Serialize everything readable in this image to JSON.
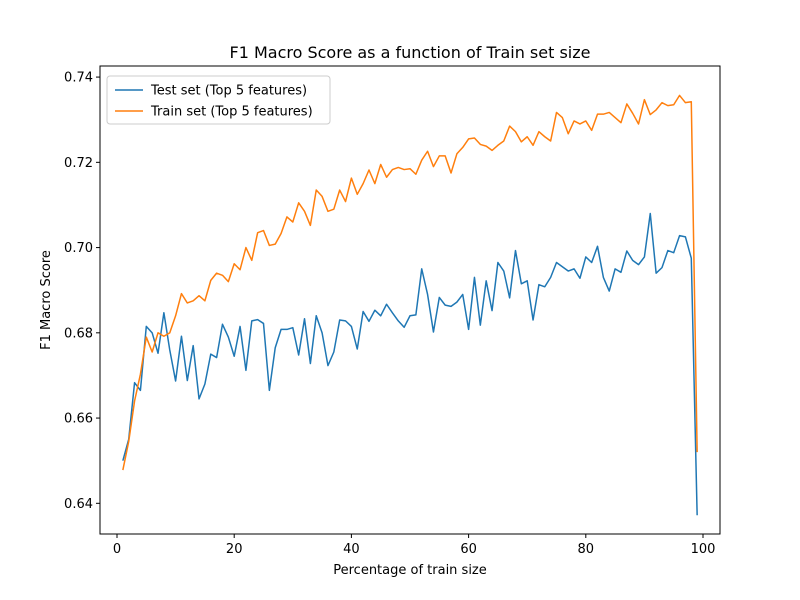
{
  "chart_data": {
    "type": "line",
    "title": "F1 Macro Score as a function of Train set size",
    "xlabel": "Percentage of train size",
    "ylabel": "F1 Macro Score",
    "xlim": [
      -2.9,
      102.9
    ],
    "ylim": [
      0.6328,
      0.7426
    ],
    "xticks": [
      0,
      20,
      40,
      60,
      80,
      100
    ],
    "xtick_labels": [
      "0",
      "20",
      "40",
      "60",
      "80",
      "100"
    ],
    "yticks": [
      0.64,
      0.66,
      0.68,
      0.7,
      0.72,
      0.74
    ],
    "ytick_labels": [
      "0.64",
      "0.66",
      "0.68",
      "0.70",
      "0.72",
      "0.74"
    ],
    "grid": false,
    "legend": "top-left",
    "x": [
      1,
      2,
      3,
      4,
      5,
      6,
      7,
      8,
      9,
      10,
      11,
      12,
      13,
      14,
      15,
      16,
      17,
      18,
      19,
      20,
      21,
      22,
      23,
      24,
      25,
      26,
      27,
      28,
      29,
      30,
      31,
      32,
      33,
      34,
      35,
      36,
      37,
      38,
      39,
      40,
      41,
      42,
      43,
      44,
      45,
      46,
      47,
      48,
      49,
      50,
      51,
      52,
      53,
      54,
      55,
      56,
      57,
      58,
      59,
      60,
      61,
      62,
      63,
      64,
      65,
      66,
      67,
      68,
      69,
      70,
      71,
      72,
      73,
      74,
      75,
      76,
      77,
      78,
      79,
      80,
      81,
      82,
      83,
      84,
      85,
      86,
      87,
      88,
      89,
      90,
      91,
      92,
      93,
      94,
      95,
      96,
      97,
      98,
      99
    ],
    "series": [
      {
        "name": "Test set (Top 5 features)",
        "color": "#1f77b4",
        "values": [
          0.65,
          0.655,
          0.6683,
          0.6665,
          0.6815,
          0.68,
          0.6752,
          0.6847,
          0.676,
          0.6687,
          0.6792,
          0.6688,
          0.677,
          0.6645,
          0.668,
          0.675,
          0.6742,
          0.682,
          0.679,
          0.6745,
          0.6815,
          0.6712,
          0.6828,
          0.6831,
          0.6822,
          0.6665,
          0.6765,
          0.6808,
          0.6808,
          0.6812,
          0.6748,
          0.6833,
          0.6728,
          0.684,
          0.68,
          0.6723,
          0.6755,
          0.683,
          0.6828,
          0.6815,
          0.6762,
          0.685,
          0.6827,
          0.6853,
          0.684,
          0.6867,
          0.6847,
          0.6828,
          0.6813,
          0.684,
          0.6842,
          0.695,
          0.689,
          0.6802,
          0.6883,
          0.6865,
          0.6862,
          0.6872,
          0.689,
          0.6808,
          0.693,
          0.6818,
          0.6922,
          0.6852,
          0.6965,
          0.6945,
          0.6882,
          0.6993,
          0.6915,
          0.6922,
          0.683,
          0.6913,
          0.6908,
          0.693,
          0.6965,
          0.6955,
          0.6945,
          0.695,
          0.6928,
          0.6978,
          0.6965,
          0.7003,
          0.693,
          0.6898,
          0.695,
          0.6942,
          0.6992,
          0.697,
          0.696,
          0.6978,
          0.708,
          0.694,
          0.6953,
          0.6993,
          0.6988,
          0.7028,
          0.7025,
          0.6975,
          0.6372
        ]
      },
      {
        "name": "Train set (Top 5 features)",
        "color": "#ff7f0e",
        "values": [
          0.6478,
          0.6545,
          0.664,
          0.6703,
          0.679,
          0.6755,
          0.68,
          0.6792,
          0.68,
          0.684,
          0.6892,
          0.687,
          0.6875,
          0.6887,
          0.6875,
          0.6923,
          0.694,
          0.6935,
          0.692,
          0.6962,
          0.6948,
          0.7,
          0.697,
          0.7035,
          0.704,
          0.7005,
          0.7008,
          0.7033,
          0.7072,
          0.706,
          0.7105,
          0.7085,
          0.7052,
          0.7135,
          0.712,
          0.7085,
          0.709,
          0.7135,
          0.7108,
          0.7163,
          0.7125,
          0.715,
          0.7182,
          0.715,
          0.7195,
          0.7165,
          0.7183,
          0.7188,
          0.7183,
          0.7185,
          0.7172,
          0.7205,
          0.7226,
          0.719,
          0.7215,
          0.7215,
          0.7175,
          0.722,
          0.7235,
          0.7255,
          0.7257,
          0.7242,
          0.7238,
          0.7228,
          0.724,
          0.725,
          0.7285,
          0.7272,
          0.7248,
          0.726,
          0.724,
          0.7272,
          0.726,
          0.725,
          0.7317,
          0.7305,
          0.7267,
          0.7297,
          0.729,
          0.7297,
          0.7275,
          0.7313,
          0.7313,
          0.7317,
          0.7305,
          0.7293,
          0.7337,
          0.7315,
          0.729,
          0.7347,
          0.7312,
          0.7323,
          0.734,
          0.7333,
          0.7335,
          0.7357,
          0.734,
          0.7342,
          0.652
        ]
      }
    ]
  }
}
